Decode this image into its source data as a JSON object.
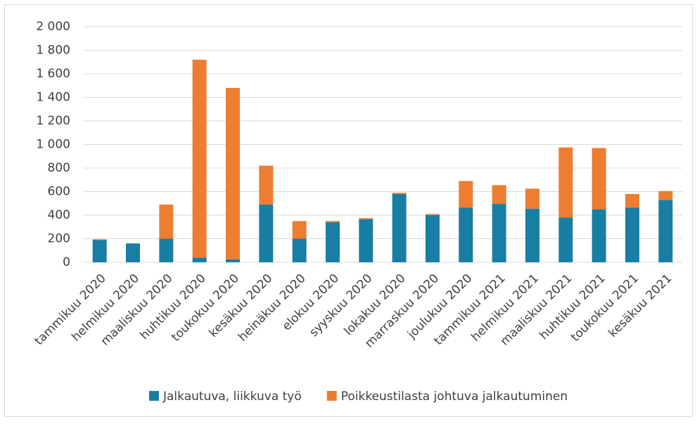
{
  "chart_data": {
    "type": "stacked_bar",
    "categories": [
      "tammikuu 2020",
      "helmikuu 2020",
      "maaliskuu 2020",
      "huhtikuu 2020",
      "toukokuu 2020",
      "kesäkuu 2020",
      "heinäkuu 2020",
      "elokuu 2020",
      "syyskuu 2020",
      "lokakuu 2020",
      "marraskuu 2020",
      "joulukuu 2020",
      "tammikuu 2021",
      "helmikuu 2021",
      "maaliskuu 2021",
      "huhtikuu 2021",
      "toukokuu 2021",
      "kesäkuu 2021"
    ],
    "series": [
      {
        "name": "Jalkautuva, liikkuva työ",
        "color": "#197ea3",
        "values": [
          190,
          160,
          200,
          40,
          25,
          490,
          200,
          340,
          365,
          580,
          400,
          465,
          495,
          455,
          380,
          450,
          465,
          530
        ]
      },
      {
        "name": "Poikkeustilasta johtuva jalkautuminen",
        "color": "#ed7d31",
        "values": [
          5,
          0,
          290,
          1680,
          1455,
          330,
          150,
          10,
          10,
          10,
          10,
          225,
          160,
          170,
          595,
          520,
          115,
          75
        ]
      }
    ],
    "ylim": [
      0,
      2000
    ],
    "yticks": [
      0,
      200,
      400,
      600,
      800,
      {
        "value": 1000,
        "label": "1 000"
      },
      {
        "value": 1200,
        "label": "1 200"
      },
      {
        "value": 1400,
        "label": "1 400"
      },
      {
        "value": 1600,
        "label": "1 600"
      },
      {
        "value": 1800,
        "label": "1 800"
      },
      {
        "value": 2000,
        "label": "2 000"
      }
    ],
    "grid": true,
    "legend": "bottom"
  }
}
